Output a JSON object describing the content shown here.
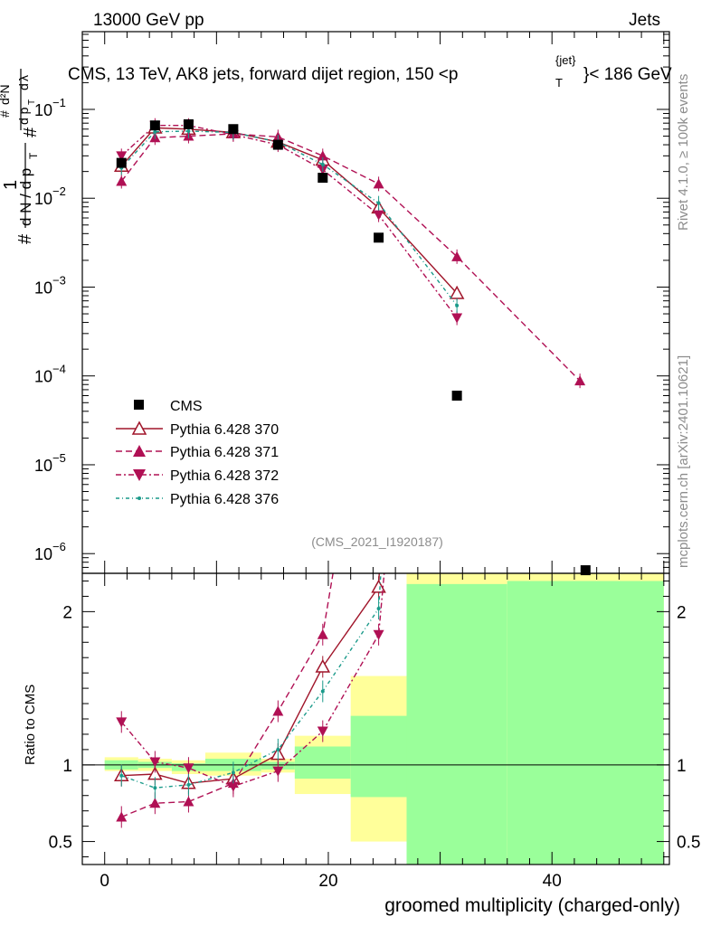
{
  "header": {
    "energy_label": "13000 GeV pp",
    "category_label": "Jets",
    "title": "CMS, 13 TeV, AK8 jets, forward dijet region, 150 <p",
    "title_sup": "{jet}",
    "title_sub": "T",
    "title_end": "}< 186 GeV"
  },
  "side_labels": {
    "rivet": "Rivet 4.1.0, ≥ 100k events",
    "mcplots": "mcplots.cern.ch [arXiv:2401.10621]"
  },
  "analysis_id": "(CMS_2021_I1920187)",
  "chart_data": {
    "type": "scatter",
    "top_panel": {
      "yscale": "log",
      "ylim": [
        6e-07,
        0.75
      ],
      "xlim": [
        -2,
        50.5
      ],
      "ylabel": "1/# dN/dp_T  # d²N / d p_T dλ",
      "y_ticks": [
        {
          "value": 1e-06,
          "base": "10",
          "exp": "−6"
        },
        {
          "value": 1e-05,
          "base": "10",
          "exp": "−5"
        },
        {
          "value": 0.0001,
          "base": "10",
          "exp": "−4"
        },
        {
          "value": 0.001,
          "base": "10",
          "exp": "−3"
        },
        {
          "value": 0.01,
          "base": "10",
          "exp": "−2"
        },
        {
          "value": 0.1,
          "base": "10",
          "exp": "−1"
        }
      ]
    },
    "ratio_panel": {
      "ylabel": "Ratio to CMS",
      "ylim": [
        0.35,
        2.25
      ],
      "y_ticks": [
        {
          "value": 0.5,
          "label": "0.5"
        },
        {
          "value": 1,
          "label": "1"
        },
        {
          "value": 2,
          "label": "2"
        }
      ]
    },
    "xlabel": "groomed multiplicity (charged-only)",
    "x_ticks": [
      {
        "value": 0,
        "label": "0"
      },
      {
        "value": 20,
        "label": "20"
      },
      {
        "value": 40,
        "label": "40"
      }
    ],
    "bins": [
      [
        0,
        3
      ],
      [
        3,
        6
      ],
      [
        6,
        9
      ],
      [
        9,
        14
      ],
      [
        14,
        17
      ],
      [
        17,
        22
      ],
      [
        22,
        27
      ],
      [
        27,
        36
      ],
      [
        36,
        50
      ]
    ],
    "data": {
      "name": "CMS",
      "x": [
        1.5,
        4.5,
        7.5,
        11.5,
        15.5,
        19.5,
        24.5,
        31.5,
        43
      ],
      "y": [
        0.025,
        0.066,
        0.068,
        0.06,
        0.04,
        0.017,
        0.0036,
        6e-05,
        6.5e-07
      ]
    },
    "uncertainty_bands": {
      "yellow": [
        [
          0.96,
          1.05
        ],
        [
          0.96,
          1.04
        ],
        [
          0.94,
          1.03
        ],
        [
          0.93,
          1.08
        ],
        [
          0.95,
          1.04
        ],
        [
          0.81,
          1.19
        ],
        [
          0.5,
          1.58
        ],
        [
          0.35,
          2.25
        ],
        [
          0.35,
          2.25
        ]
      ],
      "green": [
        [
          0.97,
          1.03
        ],
        [
          0.98,
          1.02
        ],
        [
          0.96,
          1.01
        ],
        [
          0.96,
          1.04
        ],
        [
          0.97,
          1.02
        ],
        [
          0.91,
          1.12
        ],
        [
          0.79,
          1.32
        ],
        [
          0.35,
          2.18
        ],
        [
          0.35,
          2.2
        ]
      ]
    },
    "series": [
      {
        "name": "Pythia 6.428 370",
        "color": "#a0152a",
        "dash": "",
        "marker": "open-triangle",
        "x": [
          1.5,
          4.5,
          7.5,
          11.5,
          15.5,
          19.5,
          24.5,
          31.5
        ],
        "values": [
          0.023,
          0.062,
          0.06,
          0.055,
          0.043,
          0.027,
          0.0078,
          0.00085
        ],
        "ratio": [
          0.93,
          0.94,
          0.88,
          0.91,
          1.07,
          1.64,
          2.16,
          null
        ]
      },
      {
        "name": "Pythia 6.428 371",
        "color": "#b01054",
        "dash": "7,4",
        "marker": "triangle-up",
        "x": [
          1.5,
          4.5,
          7.5,
          11.5,
          15.5,
          19.5,
          24.5,
          31.5,
          42.5
        ],
        "values": [
          0.0155,
          0.048,
          0.05,
          0.053,
          0.049,
          0.03,
          0.0145,
          0.0022,
          8.8e-05
        ],
        "ratio": [
          0.66,
          0.75,
          0.76,
          0.88,
          1.35,
          1.85,
          null,
          null,
          null
        ]
      },
      {
        "name": "Pythia 6.428 372",
        "color": "#b01054",
        "dash": "6,3,2,3",
        "marker": "triangle-down",
        "x": [
          1.5,
          4.5,
          7.5,
          11.5,
          15.5,
          19.5,
          24.5,
          31.5
        ],
        "values": [
          0.03,
          0.066,
          0.066,
          0.052,
          0.04,
          0.021,
          0.0065,
          0.00045
        ],
        "ratio": [
          1.28,
          1.02,
          0.98,
          0.86,
          0.96,
          1.22,
          1.85,
          null
        ]
      },
      {
        "name": "Pythia 6.428 376",
        "color": "#1a9a8a",
        "dash": "4,3,1,3",
        "marker": "dot",
        "x": [
          1.5,
          4.5,
          7.5,
          11.5,
          15.5,
          19.5,
          24.5,
          31.5
        ],
        "values": [
          0.022,
          0.056,
          0.057,
          0.055,
          0.043,
          0.024,
          0.0088,
          0.00062
        ],
        "ratio": [
          0.93,
          0.85,
          0.87,
          0.95,
          1.1,
          1.48,
          2.02,
          null
        ]
      }
    ]
  }
}
